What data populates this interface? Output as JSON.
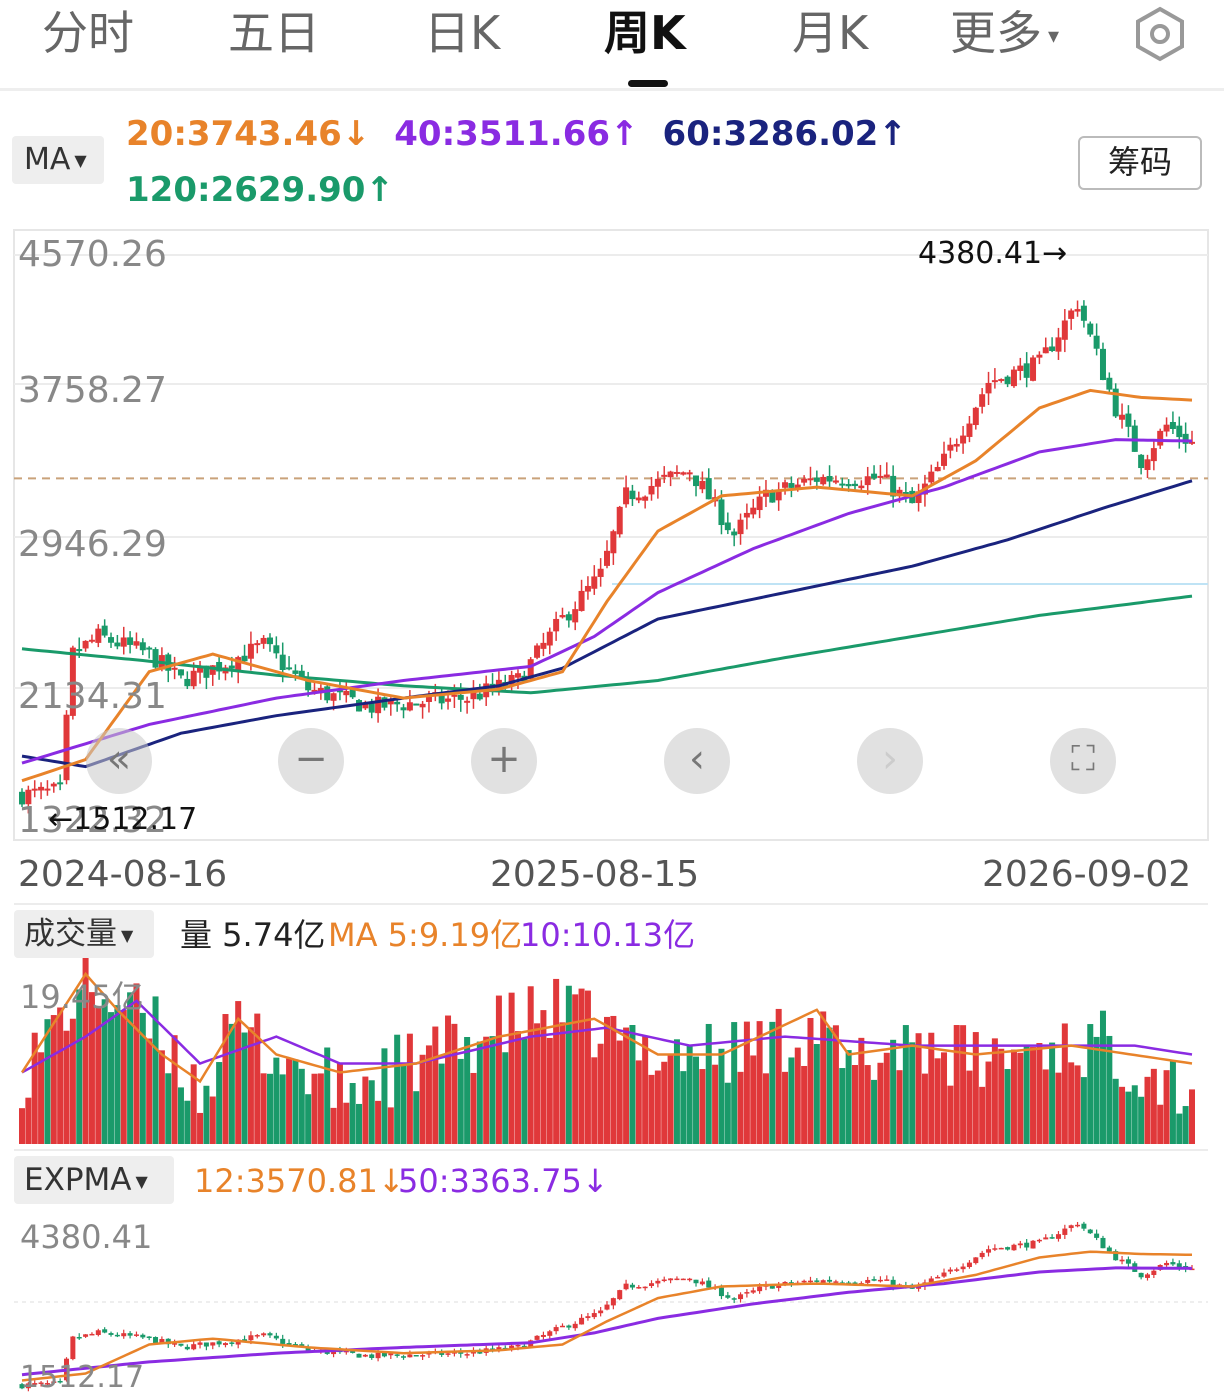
{
  "tabs": [
    {
      "label": "分时",
      "active": false
    },
    {
      "label": "五日",
      "active": false
    },
    {
      "label": "日K",
      "active": false
    },
    {
      "label": "周K",
      "active": true
    },
    {
      "label": "月K",
      "active": false
    },
    {
      "label": "更多",
      "active": false
    }
  ],
  "ma_panel": {
    "dropdown": "MA",
    "chips_button": "筹码",
    "values": [
      {
        "text": "20:3743.46↓",
        "color": "#e8832a"
      },
      {
        "text": "40:3511.66↑",
        "color": "#8a2be2"
      },
      {
        "text": "60:3286.02↑",
        "color": "#1a237e"
      },
      {
        "text": "120:2629.90↑",
        "color": "#1a9a6a"
      }
    ]
  },
  "colors": {
    "up": "#e0383a",
    "down": "#1a9a6a",
    "ma20": "#e8832a",
    "ma40": "#8a2be2",
    "ma60": "#1a237e",
    "ma120": "#1a9a6a"
  },
  "volume_panel": {
    "dropdown": "成交量",
    "vol": "量 5.74亿",
    "ma5": "MA 5:9.19亿",
    "ma10": "10:10.13亿",
    "max_label": "19.45亿"
  },
  "expma_panel": {
    "dropdown": "EXPMA",
    "e12": "12:3570.81↓",
    "e50": "50:3363.75↓",
    "top_label": "4380.41",
    "bottom_label": "1512.17"
  },
  "controls": [
    "back-to-start",
    "zoom-out",
    "zoom-in",
    "scroll-left",
    "scroll-right",
    "fullscreen"
  ],
  "chart_data": {
    "type": "candlestick",
    "y_ticks": [
      "4570.26",
      "3758.27",
      "2946.29",
      "2134.31",
      "1322.32"
    ],
    "ylim": [
      1322.32,
      4570.26
    ],
    "dates": [
      "2024-08-16",
      "2025-08-15",
      "2026-09-02"
    ],
    "high_marker": "4380.41",
    "low_marker": "1512.17",
    "reference_price": 3300,
    "last_close_ref": 2440,
    "price_waypoints": [
      [
        0,
        1500
      ],
      [
        6,
        1520
      ],
      [
        8,
        2300
      ],
      [
        12,
        2400
      ],
      [
        20,
        2300
      ],
      [
        25,
        2150
      ],
      [
        32,
        2250
      ],
      [
        38,
        2350
      ],
      [
        45,
        2100
      ],
      [
        55,
        2000
      ],
      [
        70,
        2050
      ],
      [
        78,
        2150
      ],
      [
        85,
        2500
      ],
      [
        91,
        2750
      ],
      [
        95,
        3200
      ],
      [
        105,
        3350
      ],
      [
        112,
        2980
      ],
      [
        117,
        3200
      ],
      [
        125,
        3300
      ],
      [
        135,
        3300
      ],
      [
        140,
        3150
      ],
      [
        145,
        3400
      ],
      [
        152,
        3850
      ],
      [
        160,
        3950
      ],
      [
        166,
        4300
      ],
      [
        172,
        3700
      ],
      [
        176,
        3400
      ],
      [
        180,
        3600
      ],
      [
        184,
        3500
      ]
    ],
    "ma_waypoints": {
      "ma20": [
        [
          0,
          1580
        ],
        [
          10,
          1700
        ],
        [
          20,
          2200
        ],
        [
          30,
          2300
        ],
        [
          45,
          2150
        ],
        [
          60,
          2050
        ],
        [
          75,
          2100
        ],
        [
          85,
          2200
        ],
        [
          92,
          2600
        ],
        [
          100,
          3000
        ],
        [
          110,
          3200
        ],
        [
          125,
          3250
        ],
        [
          140,
          3200
        ],
        [
          150,
          3400
        ],
        [
          160,
          3700
        ],
        [
          168,
          3800
        ],
        [
          176,
          3760
        ],
        [
          184,
          3745
        ]
      ],
      "ma40": [
        [
          0,
          1680
        ],
        [
          20,
          1900
        ],
        [
          40,
          2050
        ],
        [
          60,
          2150
        ],
        [
          80,
          2230
        ],
        [
          90,
          2400
        ],
        [
          100,
          2650
        ],
        [
          115,
          2900
        ],
        [
          130,
          3100
        ],
        [
          145,
          3250
        ],
        [
          160,
          3450
        ],
        [
          172,
          3520
        ],
        [
          184,
          3512
        ]
      ],
      "ma60": [
        [
          0,
          1720
        ],
        [
          10,
          1660
        ],
        [
          25,
          1850
        ],
        [
          40,
          1950
        ],
        [
          60,
          2050
        ],
        [
          75,
          2120
        ],
        [
          85,
          2220
        ],
        [
          100,
          2500
        ],
        [
          120,
          2650
        ],
        [
          140,
          2800
        ],
        [
          155,
          2950
        ],
        [
          170,
          3130
        ],
        [
          184,
          3286
        ]
      ],
      "ma120": [
        [
          0,
          2330
        ],
        [
          20,
          2260
        ],
        [
          40,
          2180
        ],
        [
          60,
          2120
        ],
        [
          80,
          2080
        ],
        [
          100,
          2150
        ],
        [
          120,
          2280
        ],
        [
          140,
          2400
        ],
        [
          160,
          2520
        ],
        [
          184,
          2630
        ]
      ]
    },
    "volume_waypoints": [
      [
        0,
        8
      ],
      [
        10,
        18
      ],
      [
        15,
        16
      ],
      [
        22,
        12
      ],
      [
        28,
        6
      ],
      [
        34,
        13
      ],
      [
        40,
        10
      ],
      [
        50,
        6
      ],
      [
        62,
        9
      ],
      [
        72,
        12
      ],
      [
        80,
        14
      ],
      [
        85,
        15
      ],
      [
        95,
        11
      ],
      [
        110,
        10
      ],
      [
        125,
        13
      ],
      [
        130,
        8
      ],
      [
        140,
        12
      ],
      [
        150,
        9
      ],
      [
        160,
        11
      ],
      [
        170,
        11
      ],
      [
        184,
        6
      ]
    ],
    "vol_ma5_waypoints": [
      [
        0,
        8
      ],
      [
        10,
        19
      ],
      [
        15,
        15
      ],
      [
        22,
        10
      ],
      [
        28,
        7
      ],
      [
        34,
        14
      ],
      [
        40,
        10
      ],
      [
        50,
        8
      ],
      [
        62,
        9
      ],
      [
        75,
        12
      ],
      [
        90,
        14
      ],
      [
        100,
        10
      ],
      [
        110,
        10
      ],
      [
        125,
        15
      ],
      [
        130,
        10
      ],
      [
        140,
        11
      ],
      [
        150,
        10
      ],
      [
        165,
        11
      ],
      [
        184,
        9
      ]
    ],
    "vol_ma10_waypoints": [
      [
        0,
        8
      ],
      [
        10,
        12
      ],
      [
        18,
        16
      ],
      [
        28,
        9
      ],
      [
        40,
        12
      ],
      [
        50,
        9
      ],
      [
        62,
        9
      ],
      [
        80,
        12
      ],
      [
        92,
        13
      ],
      [
        105,
        11
      ],
      [
        120,
        12
      ],
      [
        140,
        11
      ],
      [
        160,
        11
      ],
      [
        175,
        11
      ],
      [
        184,
        10
      ]
    ],
    "vol_ymax": 19.45
  }
}
